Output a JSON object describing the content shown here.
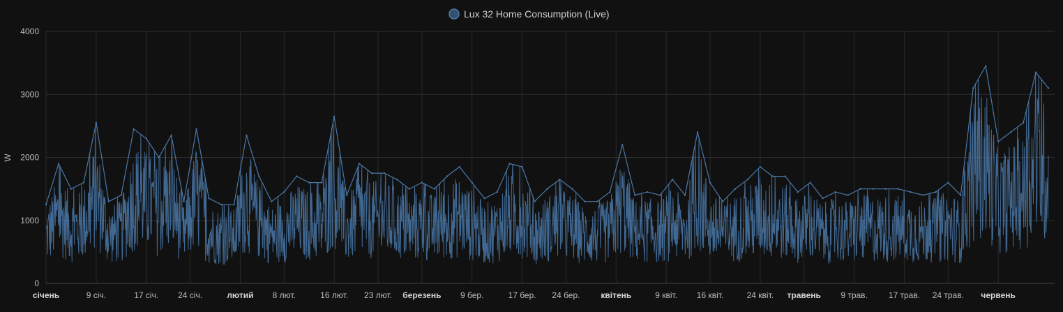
{
  "chart_data": {
    "type": "line",
    "title": "",
    "xlabel": "",
    "ylabel": "W",
    "ylim": [
      0,
      4000
    ],
    "yticks": [
      0,
      1000,
      2000,
      3000,
      4000
    ],
    "xlim": [
      "2024-01-01",
      "2024-06-10"
    ],
    "xticks": [
      {
        "date": "2024-01-01",
        "label": "січень",
        "major": true
      },
      {
        "date": "2024-01-09",
        "label": "9 січ.",
        "major": false
      },
      {
        "date": "2024-01-17",
        "label": "17 січ.",
        "major": false
      },
      {
        "date": "2024-01-24",
        "label": "24 січ.",
        "major": false
      },
      {
        "date": "2024-02-01",
        "label": "лютий",
        "major": true
      },
      {
        "date": "2024-02-08",
        "label": "8 лют.",
        "major": false
      },
      {
        "date": "2024-02-16",
        "label": "16 лют.",
        "major": false
      },
      {
        "date": "2024-02-23",
        "label": "23 лют.",
        "major": false
      },
      {
        "date": "2024-03-01",
        "label": "березень",
        "major": true
      },
      {
        "date": "2024-03-09",
        "label": "9 бер.",
        "major": false
      },
      {
        "date": "2024-03-17",
        "label": "17 бер.",
        "major": false
      },
      {
        "date": "2024-03-24",
        "label": "24 бер.",
        "major": false
      },
      {
        "date": "2024-04-01",
        "label": "квітень",
        "major": true
      },
      {
        "date": "2024-04-09",
        "label": "9 квіт.",
        "major": false
      },
      {
        "date": "2024-04-16",
        "label": "16 квіт.",
        "major": false
      },
      {
        "date": "2024-04-24",
        "label": "24 квіт.",
        "major": false
      },
      {
        "date": "2024-05-01",
        "label": "травень",
        "major": true
      },
      {
        "date": "2024-05-09",
        "label": "9 трав.",
        "major": false
      },
      {
        "date": "2024-05-17",
        "label": "17 трав.",
        "major": false
      },
      {
        "date": "2024-05-24",
        "label": "24 трав.",
        "major": false
      },
      {
        "date": "2024-06-01",
        "label": "червень",
        "major": true
      }
    ],
    "grid": true,
    "legend_position": "top-center",
    "series": [
      {
        "name": "Lux 32 Home Consumption (Live)",
        "color": "#4a78a8",
        "x": [
          "2024-01-01",
          "2024-01-03",
          "2024-01-05",
          "2024-01-07",
          "2024-01-09",
          "2024-01-11",
          "2024-01-13",
          "2024-01-15",
          "2024-01-17",
          "2024-01-19",
          "2024-01-21",
          "2024-01-23",
          "2024-01-25",
          "2024-01-27",
          "2024-01-29",
          "2024-01-31",
          "2024-02-02",
          "2024-02-04",
          "2024-02-06",
          "2024-02-08",
          "2024-02-10",
          "2024-02-12",
          "2024-02-14",
          "2024-02-16",
          "2024-02-18",
          "2024-02-20",
          "2024-02-22",
          "2024-02-24",
          "2024-02-26",
          "2024-02-28",
          "2024-03-01",
          "2024-03-03",
          "2024-03-05",
          "2024-03-07",
          "2024-03-09",
          "2024-03-11",
          "2024-03-13",
          "2024-03-15",
          "2024-03-17",
          "2024-03-19",
          "2024-03-21",
          "2024-03-23",
          "2024-03-25",
          "2024-03-27",
          "2024-03-29",
          "2024-03-31",
          "2024-04-02",
          "2024-04-04",
          "2024-04-06",
          "2024-04-08",
          "2024-04-10",
          "2024-04-12",
          "2024-04-14",
          "2024-04-16",
          "2024-04-18",
          "2024-04-20",
          "2024-04-22",
          "2024-04-24",
          "2024-04-26",
          "2024-04-28",
          "2024-04-30",
          "2024-05-02",
          "2024-05-04",
          "2024-05-06",
          "2024-05-08",
          "2024-05-10",
          "2024-05-12",
          "2024-05-14",
          "2024-05-16",
          "2024-05-18",
          "2024-05-20",
          "2024-05-22",
          "2024-05-24",
          "2024-05-26",
          "2024-05-28",
          "2024-05-30",
          "2024-06-01",
          "2024-06-03",
          "2024-06-05",
          "2024-06-07",
          "2024-06-09"
        ],
        "values": [
          1250,
          1900,
          1500,
          1600,
          2550,
          1300,
          1400,
          2450,
          2300,
          2000,
          2350,
          1300,
          2450,
          1350,
          1250,
          1250,
          2350,
          1700,
          1300,
          1450,
          1700,
          1600,
          1600,
          2650,
          1400,
          1900,
          1750,
          1750,
          1650,
          1500,
          1600,
          1500,
          1700,
          1850,
          1600,
          1350,
          1450,
          1900,
          1850,
          1300,
          1500,
          1650,
          1500,
          1300,
          1300,
          1450,
          2200,
          1400,
          1450,
          1400,
          1650,
          1400,
          2400,
          1600,
          1300,
          1500,
          1650,
          1850,
          1700,
          1700,
          1450,
          1600,
          1350,
          1450,
          1400,
          1500,
          1500,
          1500,
          1500,
          1450,
          1400,
          1450,
          1600,
          1400,
          3100,
          3450,
          2250,
          2400,
          2550,
          3350,
          3100
        ]
      }
    ]
  }
}
